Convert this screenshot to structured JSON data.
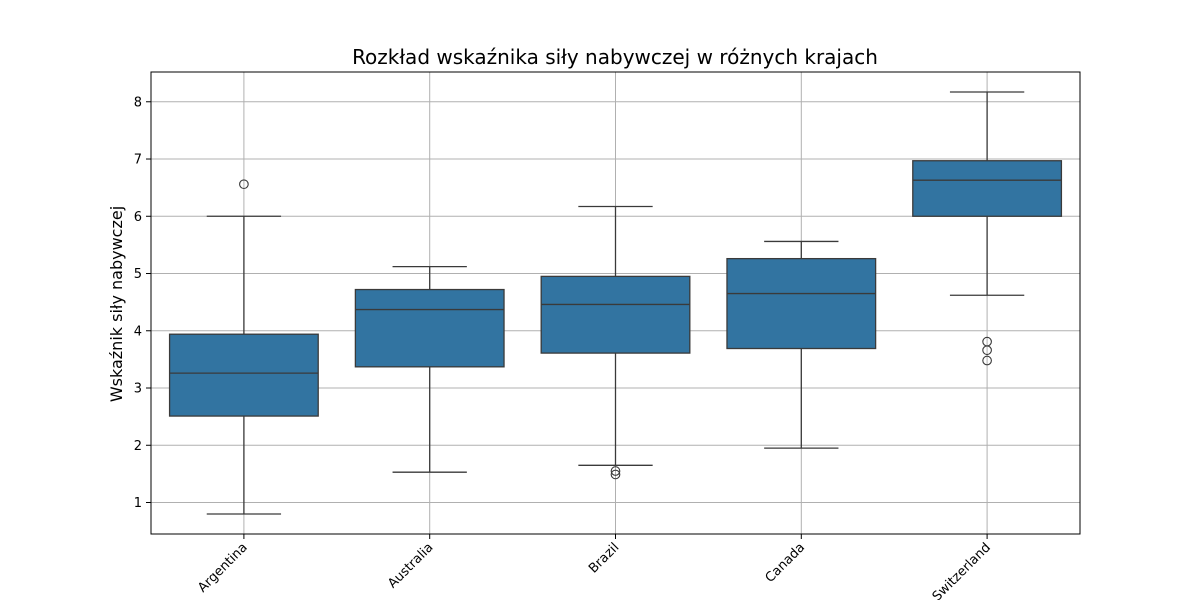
{
  "chart_data": {
    "type": "box",
    "title": "Rozkład wskaźnika siły nabywczej w różnych krajach",
    "xlabel": "",
    "ylabel": "Wskaźnik siły nabywczej",
    "categories": [
      "Argentina",
      "Australia",
      "Brazil",
      "Canada",
      "Switzerland"
    ],
    "yticks": [
      1,
      2,
      3,
      4,
      5,
      6,
      7,
      8
    ],
    "ylim": [
      0.45,
      8.52
    ],
    "grid": true,
    "box_color": "#3274a1",
    "line_color": "#3a3a3a",
    "grid_color": "#b0b0b0",
    "boxes": [
      {
        "category": "Argentina",
        "whisker_low": 0.8,
        "q1": 2.51,
        "median": 3.26,
        "q3": 3.94,
        "whisker_high": 6.0,
        "outliers": [
          6.56
        ]
      },
      {
        "category": "Australia",
        "whisker_low": 1.53,
        "q1": 3.37,
        "median": 4.37,
        "q3": 4.72,
        "whisker_high": 5.12,
        "outliers": []
      },
      {
        "category": "Brazil",
        "whisker_low": 1.65,
        "q1": 3.61,
        "median": 4.46,
        "q3": 4.95,
        "whisker_high": 6.17,
        "outliers": [
          1.49,
          1.55
        ]
      },
      {
        "category": "Canada",
        "whisker_low": 1.95,
        "q1": 3.69,
        "median": 4.65,
        "q3": 5.26,
        "whisker_high": 5.56,
        "outliers": []
      },
      {
        "category": "Switzerland",
        "whisker_low": 4.62,
        "q1": 6.0,
        "median": 6.63,
        "q3": 6.97,
        "whisker_high": 8.17,
        "outliers": [
          3.48,
          3.66,
          3.81
        ]
      }
    ]
  }
}
